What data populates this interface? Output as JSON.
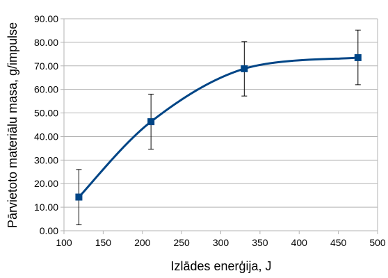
{
  "chart_data": {
    "type": "scatter",
    "title": "",
    "xlabel": "Izlādes enerģija, J",
    "ylabel": "Pārvietoto materiālu masa, g/impulse",
    "xlim": [
      100,
      500
    ],
    "ylim": [
      0,
      90
    ],
    "x_ticks": [
      100,
      150,
      200,
      250,
      300,
      350,
      400,
      450,
      500
    ],
    "y_ticks": [
      "0.00",
      "10.00",
      "20.00",
      "30.00",
      "40.00",
      "50.00",
      "60.00",
      "70.00",
      "80.00",
      "90.00"
    ],
    "grid": "horizontal",
    "legend": "none",
    "smoothed_line": true,
    "marker": "square",
    "series": [
      {
        "x": [
          119,
          211,
          330,
          475
        ],
        "y": [
          14.3,
          46.3,
          68.8,
          73.5
        ],
        "error_low": [
          2.5,
          34.6,
          57.2,
          62.0
        ],
        "error_high": [
          26.0,
          58.0,
          80.3,
          85.2
        ],
        "color": "#004586"
      }
    ]
  }
}
